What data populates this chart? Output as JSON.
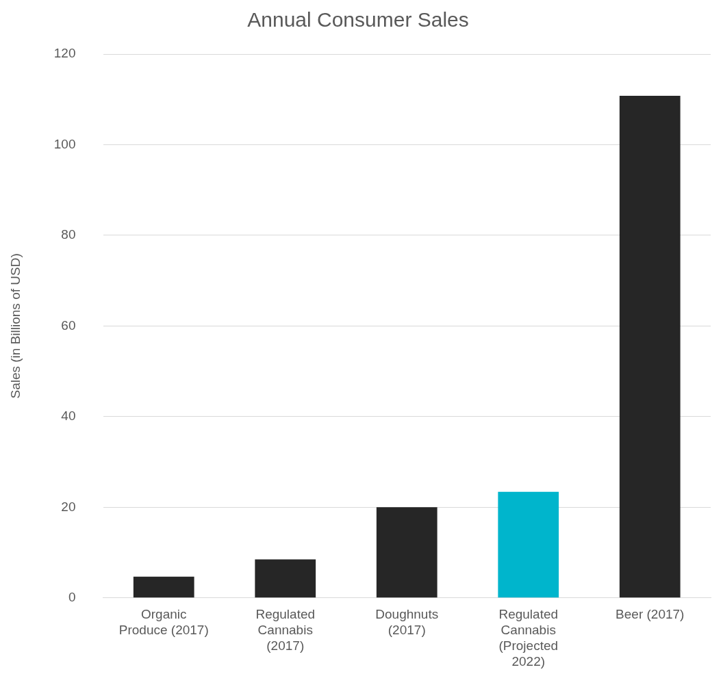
{
  "chart_data": {
    "type": "bar",
    "title": "Annual Consumer Sales",
    "ylabel": "Sales (in Billions of USD)",
    "categories": [
      "Organic Produce (2017)",
      "Regulated Cannabis (2017)",
      "Doughnuts (2017)",
      "Regulated Cannabis (Projected 2022)",
      "Beer (2017)"
    ],
    "values": [
      4.7,
      8.5,
      20,
      23.4,
      110.8
    ],
    "colors": [
      "#262626",
      "#262626",
      "#262626",
      "#00b5cc",
      "#262626"
    ],
    "ylim": [
      0,
      120
    ],
    "yticks": [
      0,
      20,
      40,
      60,
      80,
      100,
      120
    ],
    "grid": "y"
  }
}
